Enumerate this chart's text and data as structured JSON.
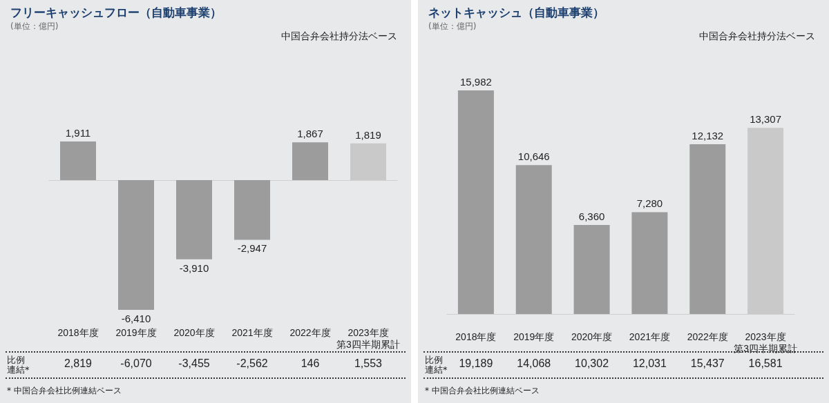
{
  "chart_data": [
    {
      "type": "bar",
      "title": "フリーキャッシュフロー（自動車事業）",
      "subtitle": "(単位：億円)",
      "categories": [
        "2018年度",
        "2019年度",
        "2020年度",
        "2021年度",
        "2022年度",
        "2023年度第3四半期累計"
      ],
      "values": [
        1911,
        -6410,
        -3910,
        -2947,
        1867,
        1819
      ],
      "value_labels": [
        "1,911",
        "-6,410",
        "-3,910",
        "-2,947",
        "1,867",
        "1,819"
      ],
      "colors": [
        "#9c9c9c",
        "#9c9c9c",
        "#9c9c9c",
        "#9c9c9c",
        "#9c9c9c",
        "#c9c9c9"
      ],
      "annotations": [
        "中国合弁会社持分法ベース",
        "比例連結*",
        "2,819",
        "-6,070",
        "-3,455",
        "-2,562",
        "146",
        "1,553",
        "* 中国合弁会社比例連結ベース"
      ]
    },
    {
      "type": "bar",
      "title": "ネットキャッシュ（自動車事業）",
      "subtitle": "(単位：億円)",
      "categories": [
        "2018年度",
        "2019年度",
        "2020年度",
        "2021年度",
        "2022年度",
        "2023年度第3四半期累計"
      ],
      "values": [
        15982,
        10646,
        6360,
        7280,
        12132,
        13307
      ],
      "value_labels": [
        "15,982",
        "10,646",
        "6,360",
        "7,280",
        "12,132",
        "13,307"
      ],
      "colors": [
        "#9c9c9c",
        "#9c9c9c",
        "#9c9c9c",
        "#9c9c9c",
        "#9c9c9c",
        "#c9c9c9"
      ],
      "annotations": [
        "中国合弁会社持分法ベース",
        "比例連結*",
        "19,189",
        "14,068",
        "10,302",
        "12,031",
        "15,437",
        "16,581",
        "* 中国合弁会社比例連結ベース"
      ]
    }
  ]
}
